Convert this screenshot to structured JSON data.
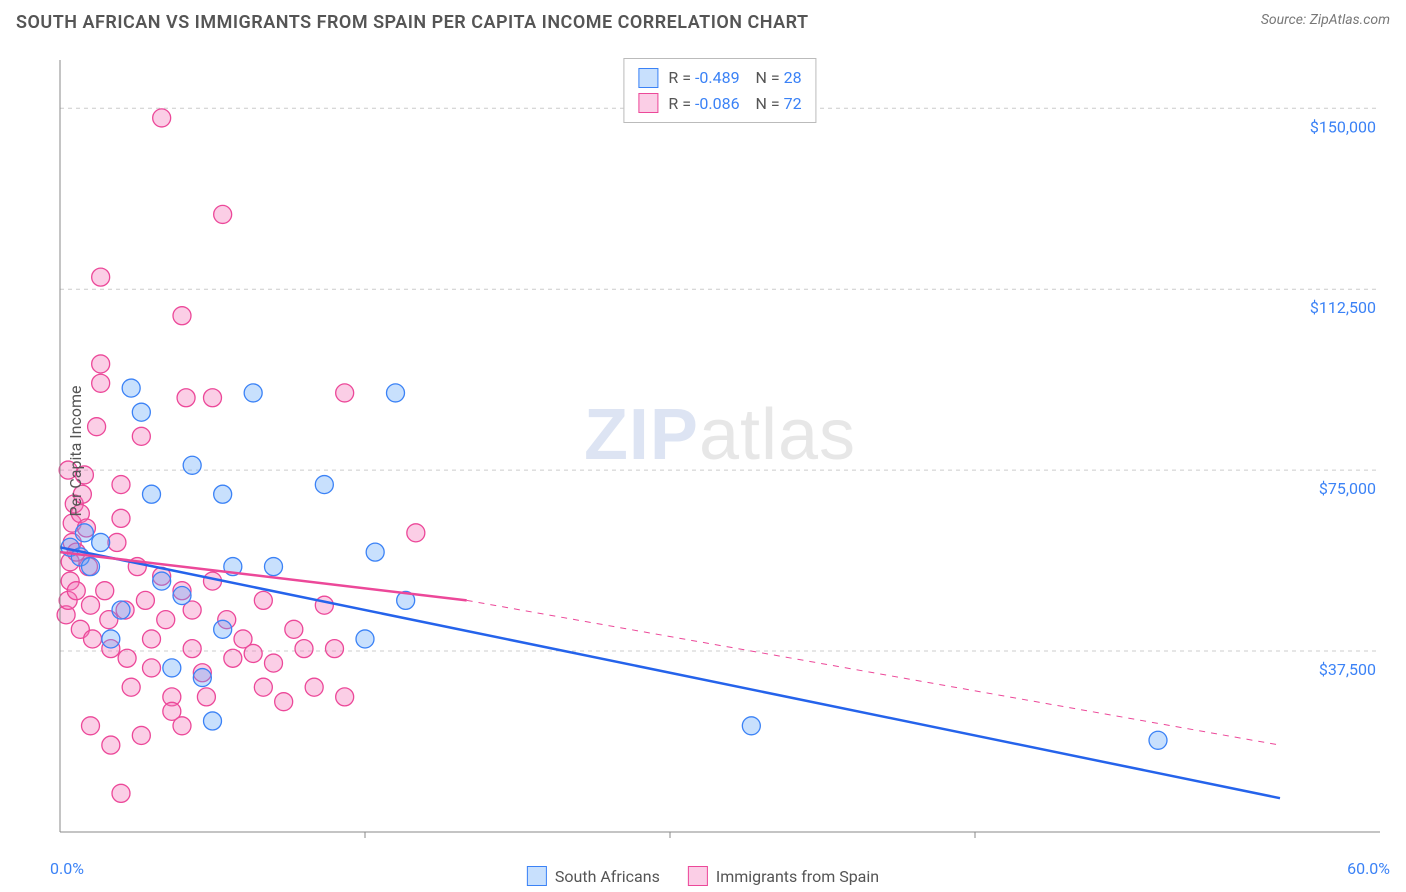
{
  "title": "SOUTH AFRICAN VS IMMIGRANTS FROM SPAIN PER CAPITA INCOME CORRELATION CHART",
  "source_label": "Source: ",
  "source_name": "ZipAtlas.com",
  "watermark_a": "ZIP",
  "watermark_b": "atlas",
  "chart": {
    "type": "scatter",
    "ylabel": "Per Capita Income",
    "xlim": [
      0,
      60
    ],
    "ylim": [
      0,
      160000
    ],
    "x_tick_min_label": "0.0%",
    "x_tick_max_label": "60.0%",
    "y_ticks": [
      37500,
      75000,
      112500,
      150000
    ],
    "y_tick_labels": [
      "$37,500",
      "$75,000",
      "$112,500",
      "$150,000"
    ],
    "grid_color": "#cccccc",
    "background_color": "#ffffff",
    "axis_color": "#888888",
    "series": [
      {
        "key": "south_africans",
        "label": "South Africans",
        "R": "-0.489",
        "N": "28",
        "marker_fill": "rgba(96,165,250,0.35)",
        "marker_stroke": "#3b82f6",
        "marker_r": 9,
        "line_color": "#2563eb",
        "line_width": 2.5,
        "line_dash": "",
        "trend": {
          "x1": 0,
          "y1": 59000,
          "x2": 60,
          "y2": 7000
        },
        "points": [
          [
            0.5,
            59000
          ],
          [
            1.0,
            57000
          ],
          [
            1.2,
            62000
          ],
          [
            1.5,
            55000
          ],
          [
            2.0,
            60000
          ],
          [
            3.5,
            92000
          ],
          [
            4.0,
            87000
          ],
          [
            4.5,
            70000
          ],
          [
            5.0,
            52000
          ],
          [
            6.0,
            49000
          ],
          [
            6.5,
            76000
          ],
          [
            8.0,
            70000
          ],
          [
            8.5,
            55000
          ],
          [
            8.0,
            42000
          ],
          [
            7.0,
            32000
          ],
          [
            7.5,
            23000
          ],
          [
            9.5,
            91000
          ],
          [
            10.5,
            55000
          ],
          [
            5.5,
            34000
          ],
          [
            13.0,
            72000
          ],
          [
            15.0,
            40000
          ],
          [
            15.5,
            58000
          ],
          [
            16.5,
            91000
          ],
          [
            17.0,
            48000
          ],
          [
            2.5,
            40000
          ],
          [
            3.0,
            46000
          ],
          [
            34.0,
            22000
          ],
          [
            54.0,
            19000
          ]
        ]
      },
      {
        "key": "immigrants_spain",
        "label": "Immigrants from Spain",
        "R": "-0.086",
        "N": "72",
        "marker_fill": "rgba(244,114,182,0.35)",
        "marker_stroke": "#ec4899",
        "marker_r": 9,
        "line_color": "#ec4899",
        "line_width": 2.5,
        "line_dash": "",
        "trend": {
          "x1": 0,
          "y1": 58000,
          "x2": 20,
          "y2": 48000
        },
        "trend_ext": {
          "x1": 20,
          "y1": 48000,
          "x2": 60,
          "y2": 18000,
          "dash": "6 6",
          "width": 1
        },
        "points": [
          [
            0.3,
            45000
          ],
          [
            0.4,
            48000
          ],
          [
            0.5,
            52000
          ],
          [
            0.5,
            56000
          ],
          [
            0.6,
            60000
          ],
          [
            0.6,
            64000
          ],
          [
            0.7,
            68000
          ],
          [
            0.8,
            58000
          ],
          [
            0.8,
            50000
          ],
          [
            1.0,
            42000
          ],
          [
            1.0,
            66000
          ],
          [
            1.1,
            70000
          ],
          [
            1.2,
            74000
          ],
          [
            1.3,
            63000
          ],
          [
            1.4,
            55000
          ],
          [
            1.5,
            47000
          ],
          [
            1.6,
            40000
          ],
          [
            1.8,
            84000
          ],
          [
            2.0,
            93000
          ],
          [
            2.0,
            97000
          ],
          [
            2.0,
            115000
          ],
          [
            2.2,
            50000
          ],
          [
            2.4,
            44000
          ],
          [
            2.5,
            38000
          ],
          [
            2.8,
            60000
          ],
          [
            3.0,
            65000
          ],
          [
            3.0,
            72000
          ],
          [
            3.2,
            46000
          ],
          [
            3.3,
            36000
          ],
          [
            3.5,
            30000
          ],
          [
            3.8,
            55000
          ],
          [
            4.0,
            82000
          ],
          [
            4.2,
            48000
          ],
          [
            4.5,
            40000
          ],
          [
            4.5,
            34000
          ],
          [
            5.0,
            53000
          ],
          [
            5.0,
            148000
          ],
          [
            5.2,
            44000
          ],
          [
            5.5,
            28000
          ],
          [
            5.5,
            25000
          ],
          [
            6.0,
            50000
          ],
          [
            6.0,
            107000
          ],
          [
            6.2,
            90000
          ],
          [
            6.5,
            38000
          ],
          [
            6.5,
            46000
          ],
          [
            7.0,
            33000
          ],
          [
            7.2,
            28000
          ],
          [
            7.5,
            52000
          ],
          [
            7.5,
            90000
          ],
          [
            8.0,
            128000
          ],
          [
            8.2,
            44000
          ],
          [
            8.5,
            36000
          ],
          [
            9.0,
            40000
          ],
          [
            9.5,
            37000
          ],
          [
            10.0,
            48000
          ],
          [
            10.0,
            30000
          ],
          [
            10.5,
            35000
          ],
          [
            11.0,
            27000
          ],
          [
            11.5,
            42000
          ],
          [
            12.0,
            38000
          ],
          [
            12.5,
            30000
          ],
          [
            13.0,
            47000
          ],
          [
            13.5,
            38000
          ],
          [
            14.0,
            28000
          ],
          [
            14.0,
            91000
          ],
          [
            3.0,
            8000
          ],
          [
            1.5,
            22000
          ],
          [
            2.5,
            18000
          ],
          [
            4.0,
            20000
          ],
          [
            6.0,
            22000
          ],
          [
            17.5,
            62000
          ],
          [
            0.4,
            75000
          ]
        ]
      }
    ]
  },
  "corr_legend_labels": {
    "R": "R = ",
    "N": "N = "
  },
  "colors": {
    "tick_label": "#3b82f6",
    "text": "#555555"
  }
}
